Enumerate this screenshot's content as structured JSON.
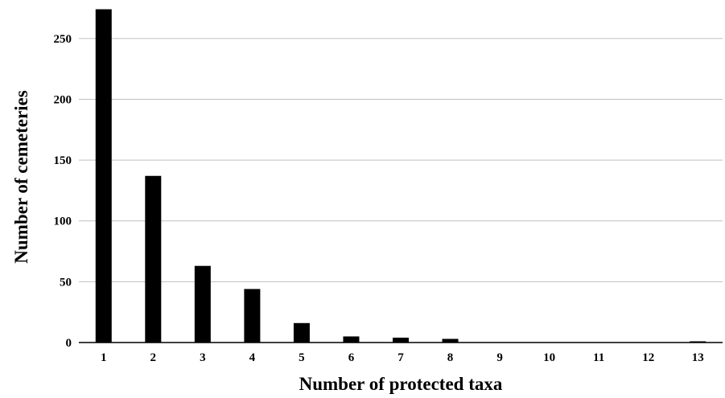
{
  "chart_data": {
    "type": "bar",
    "title": "",
    "xlabel": "Number of protected taxa",
    "ylabel": "Number of cemeteries",
    "categories": [
      "1",
      "2",
      "3",
      "4",
      "5",
      "6",
      "7",
      "8",
      "9",
      "10",
      "11",
      "12",
      "13"
    ],
    "values": [
      274,
      137,
      63,
      44,
      16,
      5,
      4,
      3,
      0,
      0,
      0,
      0,
      1
    ],
    "ylim": [
      0,
      275
    ],
    "yticks": [
      0,
      50,
      100,
      150,
      200,
      250
    ],
    "grid": true,
    "legend": "none",
    "colors": {
      "bar": "#000000",
      "grid": "#bfbfbf",
      "axis": "#000000"
    }
  }
}
